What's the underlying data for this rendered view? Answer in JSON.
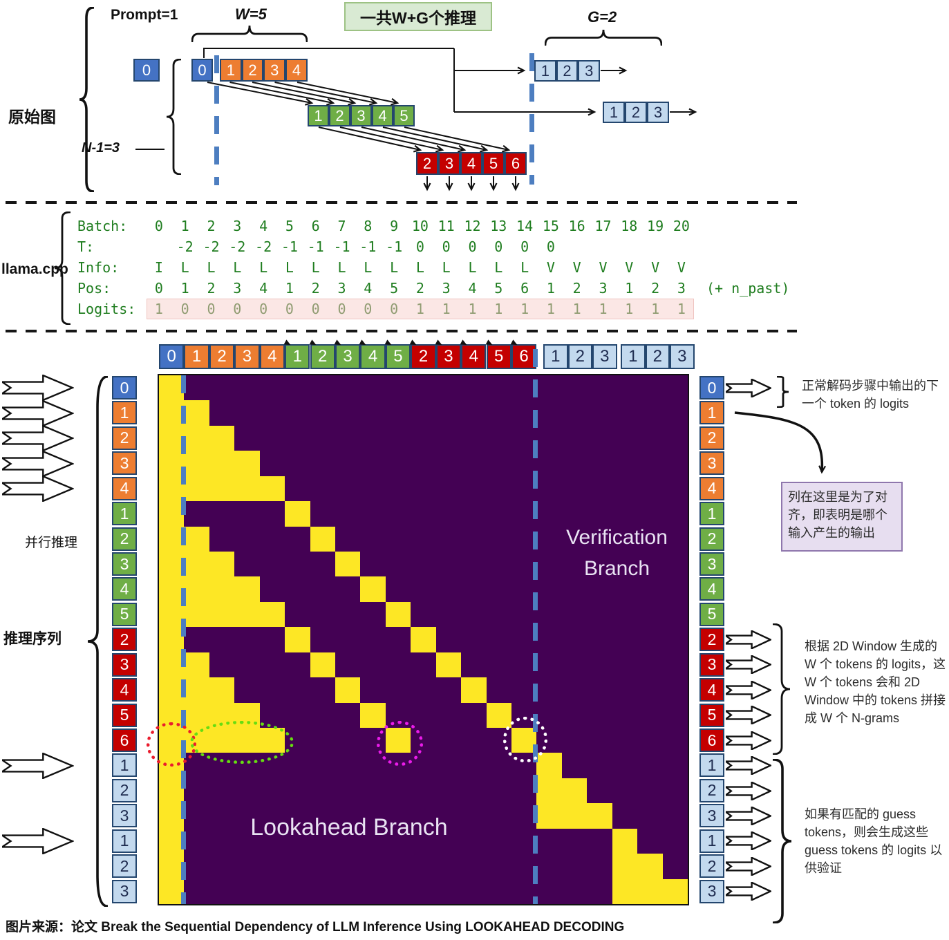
{
  "top": {
    "left_label": "原始图",
    "prompt_label": "Prompt=1",
    "w_label": "W=5",
    "n_label": "N-1=3",
    "g_label": "G=2",
    "banner": "一共W+G个推理",
    "prompt_token": "0",
    "rows": {
      "main": [
        "0",
        "1",
        "2",
        "3",
        "4"
      ],
      "level1": [
        "1",
        "2",
        "3",
        "4",
        "5"
      ],
      "level2": [
        "2",
        "3",
        "4",
        "5",
        "6"
      ],
      "guess1": [
        "1",
        "2",
        "3"
      ],
      "guess2": [
        "1",
        "2",
        "3"
      ]
    }
  },
  "llama": {
    "label": "llama.cpp",
    "rows": [
      {
        "name": "Batch:",
        "values": [
          "0",
          "1",
          "2",
          "3",
          "4",
          "5",
          "6",
          "7",
          "8",
          "9",
          "10",
          "11",
          "12",
          "13",
          "14",
          "15",
          "16",
          "17",
          "18",
          "19",
          "20"
        ]
      },
      {
        "name": "T:",
        "values": [
          "",
          "-2",
          "-2",
          "-2",
          "-2",
          "-1",
          "-1",
          "-1",
          "-1",
          "-1",
          "0",
          "0",
          "0",
          "0",
          "0",
          "0",
          "",
          "",
          "",
          "",
          ""
        ]
      },
      {
        "name": "Info:",
        "values": [
          "I",
          "L",
          "L",
          "L",
          "L",
          "L",
          "L",
          "L",
          "L",
          "L",
          "L",
          "L",
          "L",
          "L",
          "L",
          "V",
          "V",
          "V",
          "V",
          "V",
          "V"
        ]
      },
      {
        "name": "Pos:",
        "values": [
          "0",
          "1",
          "2",
          "3",
          "4",
          "1",
          "2",
          "3",
          "4",
          "5",
          "2",
          "3",
          "4",
          "5",
          "6",
          "1",
          "2",
          "3",
          "1",
          "2",
          "3"
        ],
        "suffix": "(+ n_past)"
      },
      {
        "name": "Logits:",
        "values": [
          "1",
          "0",
          "0",
          "0",
          "0",
          "0",
          "0",
          "0",
          "0",
          "0",
          "1",
          "1",
          "1",
          "1",
          "1",
          "1",
          "1",
          "1",
          "1",
          "1",
          "1"
        ],
        "highlight": true
      }
    ]
  },
  "matrix": {
    "size": 21,
    "lookahead_label": "Lookahead Branch",
    "verification_label": "Verification Branch",
    "header_groups": [
      {
        "color": "blue",
        "tokens": [
          "0"
        ],
        "marks": false
      },
      {
        "color": "orange",
        "tokens": [
          "1",
          "2",
          "3",
          "4"
        ],
        "marks": false
      },
      {
        "color": "green",
        "tokens": [
          "1",
          "2",
          "3",
          "4",
          "5"
        ],
        "marks": true
      },
      {
        "color": "red",
        "tokens": [
          "2",
          "3",
          "4",
          "5",
          "6"
        ],
        "marks": true
      },
      {
        "color": "lightblue",
        "tokens": [
          "1",
          "2",
          "3"
        ],
        "marks": false
      },
      {
        "color": "lightblue",
        "tokens": [
          "1",
          "2",
          "3"
        ],
        "marks": false
      }
    ],
    "side_tokens": [
      {
        "t": "0",
        "c": "blue"
      },
      {
        "t": "1",
        "c": "orange"
      },
      {
        "t": "2",
        "c": "orange"
      },
      {
        "t": "3",
        "c": "orange"
      },
      {
        "t": "4",
        "c": "orange"
      },
      {
        "t": "1",
        "c": "green"
      },
      {
        "t": "2",
        "c": "green"
      },
      {
        "t": "3",
        "c": "green"
      },
      {
        "t": "4",
        "c": "green"
      },
      {
        "t": "5",
        "c": "green"
      },
      {
        "t": "2",
        "c": "red"
      },
      {
        "t": "3",
        "c": "red"
      },
      {
        "t": "4",
        "c": "red"
      },
      {
        "t": "5",
        "c": "red"
      },
      {
        "t": "6",
        "c": "red"
      },
      {
        "t": "1",
        "c": "lightblue"
      },
      {
        "t": "2",
        "c": "lightblue"
      },
      {
        "t": "3",
        "c": "lightblue"
      },
      {
        "t": "1",
        "c": "lightblue"
      },
      {
        "t": "2",
        "c": "lightblue"
      },
      {
        "t": "3",
        "c": "lightblue"
      }
    ],
    "mask_rows": [
      [
        0
      ],
      [
        0,
        1
      ],
      [
        0,
        1,
        2
      ],
      [
        0,
        1,
        2,
        3
      ],
      [
        0,
        1,
        2,
        3,
        4
      ],
      [
        0,
        5
      ],
      [
        0,
        1,
        6
      ],
      [
        0,
        1,
        2,
        7
      ],
      [
        0,
        1,
        2,
        3,
        8
      ],
      [
        0,
        1,
        2,
        3,
        4,
        9
      ],
      [
        0,
        5,
        10
      ],
      [
        0,
        1,
        6,
        11
      ],
      [
        0,
        1,
        2,
        7,
        12
      ],
      [
        0,
        1,
        2,
        3,
        8,
        13
      ],
      [
        0,
        1,
        2,
        3,
        4,
        9,
        14
      ],
      [
        0,
        15
      ],
      [
        0,
        15,
        16
      ],
      [
        0,
        15,
        16,
        17
      ],
      [
        0,
        18
      ],
      [
        0,
        18,
        19
      ],
      [
        0,
        18,
        19,
        20
      ]
    ]
  },
  "annotations": {
    "parallel_label": "并行推理",
    "sequence_label": "推理序列",
    "note_top": "正常解码步骤中输出的下一个 token 的 logits",
    "note_align": "列在这里是为了对齐，即表明是哪个输入产生的输出",
    "note_window": "根据 2D Window 生成的 W 个 tokens 的 logits，这 W 个 tokens 会和 2D Window 中的 tokens 拼接成 W 个 N-grams",
    "note_guess": "如果有匹配的 guess tokens，则会生成这些 guess tokens 的 logits 以供验证"
  },
  "caption": "图片来源：论文 Break the Sequential Dependency of LLM Inference Using LOOKAHEAD DECODING",
  "colors": {
    "blue": "#4472c4",
    "orange": "#ed7d31",
    "green": "#6fae46",
    "red": "#c40000",
    "lightblue": "#c3d9ee",
    "token_border": "#24466e",
    "mask_bg": "#440154",
    "mask_on": "#fde725",
    "dashed_line": "#4d7ec0",
    "terminal_green": "#1f7d1f",
    "logits_dim": "#909c72",
    "pink_bg": "#fbe7e5",
    "banner_bg": "#d9ead3",
    "note_box_bg": "#e7def0",
    "note_box_border": "#8f77ad",
    "circle_red": "#ea1c2d",
    "circle_green": "#66dd11",
    "circle_magenta": "#ea1cea",
    "circle_white": "#ffffff"
  }
}
